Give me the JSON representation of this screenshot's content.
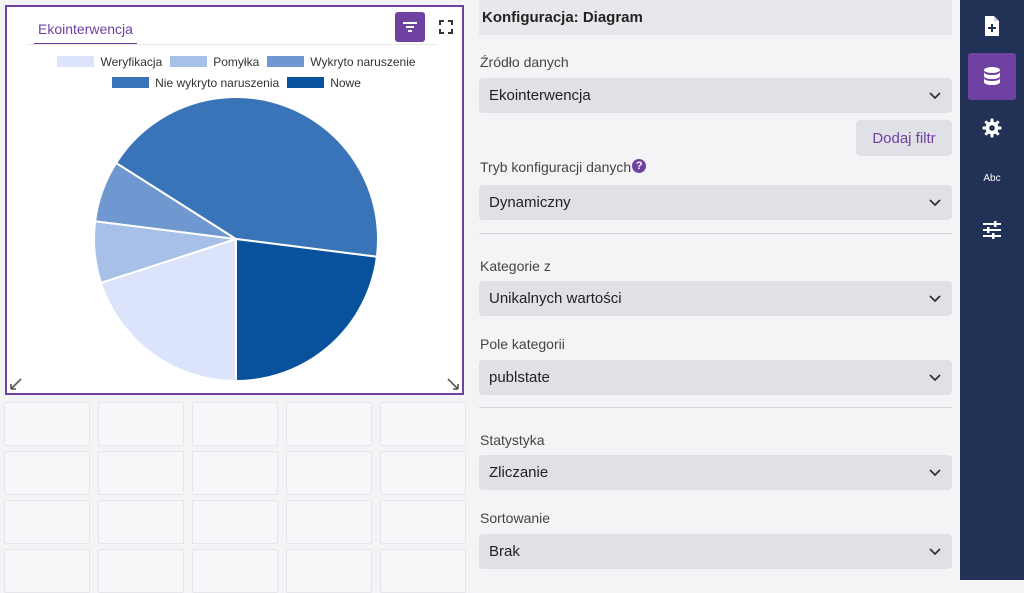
{
  "widget": {
    "tab_label": "Ekointerwencja",
    "filter_icon": "filter-lines-icon",
    "fullscreen_icon": "fullscreen-icon"
  },
  "chart_data": {
    "type": "pie",
    "categories": [
      "Weryfikacja",
      "Pomyłka",
      "Wykryto naruszenie",
      "Nie wykryto naruszenia",
      "Nowe"
    ],
    "values": [
      20,
      7,
      7,
      43,
      23
    ],
    "colors": [
      "#dbe4fb",
      "#a8c0e8",
      "#6f98d0",
      "#3a74b8",
      "#08519c"
    ],
    "legend_position": "top"
  },
  "panel": {
    "title": "Konfiguracja: Diagram",
    "source_label": "Źródło danych",
    "source_value": "Ekointerwencja",
    "add_filter_label": "Dodaj filtr",
    "mode_label": "Tryb konfiguracji danych",
    "mode_help": "?",
    "mode_value": "Dynamiczny",
    "categories_from_label": "Kategorie z",
    "categories_from_value": "Unikalnych wartości",
    "category_field_label": "Pole kategorii",
    "category_field_value": "publstate",
    "statistic_label": "Statystyka",
    "statistic_value": "Zliczanie",
    "sort_label": "Sortowanie",
    "sort_value": "Brak"
  },
  "sidebar": {
    "items": [
      {
        "icon": "add-document-icon",
        "active": false
      },
      {
        "icon": "database-icon",
        "active": true
      },
      {
        "icon": "gear-icon",
        "active": false
      },
      {
        "icon": "text-abc-icon",
        "label": "Abc",
        "active": false
      },
      {
        "icon": "sliders-icon",
        "active": false
      }
    ]
  },
  "colors": {
    "accent": "#6f42a1",
    "sidebar_bg": "#223257",
    "select_bg": "#dfe1e7"
  }
}
